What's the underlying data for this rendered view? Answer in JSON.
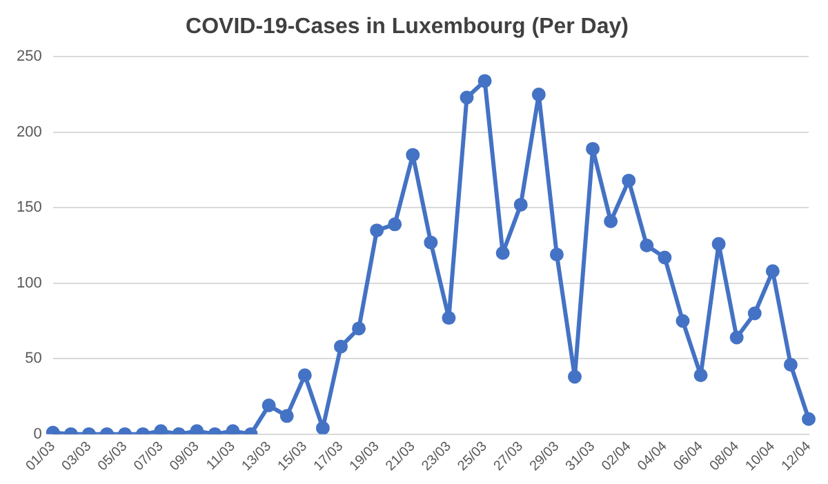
{
  "chart_data": {
    "type": "line",
    "title": "COVID-19-Cases in Luxembourg (Per Day)",
    "categories": [
      "01/03",
      null,
      "03/03",
      null,
      "05/03",
      null,
      "07/03",
      null,
      "09/03",
      null,
      "11/03",
      null,
      "13/03",
      null,
      "15/03",
      null,
      "17/03",
      null,
      "19/03",
      null,
      "21/03",
      null,
      "23/03",
      null,
      "25/03",
      null,
      "27/03",
      null,
      "29/03",
      null,
      "31/03",
      null,
      "02/04",
      null,
      "04/04",
      null,
      "06/04",
      null,
      "08/04",
      null,
      "10/04",
      null,
      "12/04"
    ],
    "series": [
      {
        "color": "#4472c4",
        "values": [
          1,
          0,
          0,
          0,
          0,
          0,
          2,
          0,
          2,
          0,
          2,
          0,
          19,
          12,
          39,
          4,
          58,
          70,
          135,
          139,
          185,
          127,
          77,
          223,
          234,
          120,
          152,
          225,
          119,
          38,
          189,
          141,
          168,
          125,
          117,
          75,
          39,
          126,
          64,
          80,
          108,
          46,
          10
        ]
      }
    ],
    "ylim": [
      0,
      250
    ],
    "yticks": [
      0,
      50,
      100,
      150,
      200,
      250
    ],
    "grid": "y",
    "legend": false,
    "marker": "circle",
    "line_style": "solid"
  }
}
